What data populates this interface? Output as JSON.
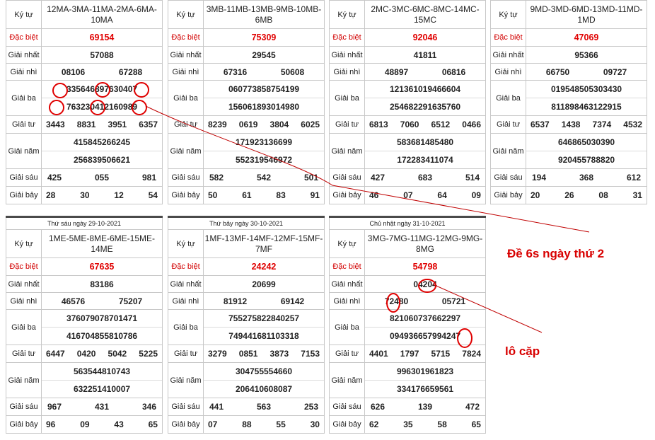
{
  "labels": {
    "ky_tu": "Ký tự",
    "dac_biet": "Đặc biệt",
    "nhat": "Giải nhất",
    "nhi": "Giải nhì",
    "ba": "Giải ba",
    "tu": "Giải tư",
    "nam": "Giải năm",
    "sau": "Giải sáu",
    "bay": "Giải bảy"
  },
  "tables": [
    {
      "header": "",
      "code": "12MA-3MA-11MA-2MA-6MA-10MA",
      "db": "69154",
      "g1": "57088",
      "g2": [
        "08106",
        "67288"
      ],
      "g3": [
        [
          "33564",
          "68976",
          "30407"
        ],
        [
          "76323",
          "04121",
          "60989"
        ]
      ],
      "g4": [
        "3443",
        "8831",
        "3951",
        "6357"
      ],
      "g5": [
        [
          "4158",
          "4526",
          "6245"
        ],
        [
          "2568",
          "3950",
          "6621"
        ]
      ],
      "g6": [
        "425",
        "055",
        "981"
      ],
      "g7": [
        "28",
        "30",
        "12",
        "54"
      ]
    },
    {
      "header": "",
      "code": "3MB-11MB-13MB-9MB-10MB-6MB",
      "db": "75309",
      "g1": "29545",
      "g2": [
        "67316",
        "50608"
      ],
      "g3": [
        [
          "06077",
          "38587",
          "54199"
        ],
        [
          "15606",
          "18930",
          "14980"
        ]
      ],
      "g4": [
        "8239",
        "0619",
        "3804",
        "6025"
      ],
      "g5": [
        [
          "1719",
          "2313",
          "6699"
        ],
        [
          "5523",
          "1954",
          "6972"
        ]
      ],
      "g6": [
        "582",
        "542",
        "501"
      ],
      "g7": [
        "50",
        "61",
        "83",
        "91"
      ]
    },
    {
      "header": "",
      "code": "2MC-3MC-6MC-8MC-14MC-15MC",
      "db": "92046",
      "g1": "41811",
      "g2": [
        "48897",
        "06816"
      ],
      "g3": [
        [
          "12136",
          "10194",
          "66604"
        ],
        [
          "25468",
          "22916",
          "35760"
        ]
      ],
      "g4": [
        "6813",
        "7060",
        "6512",
        "0466"
      ],
      "g5": [
        [
          "5836",
          "8148",
          "5480"
        ],
        [
          "1722",
          "8341",
          "1074"
        ]
      ],
      "g6": [
        "427",
        "683",
        "514"
      ],
      "g7": [
        "46",
        "07",
        "64",
        "09"
      ]
    },
    {
      "header": "",
      "code": "9MD-3MD-6MD-13MD-11MD-1MD",
      "db": "47069",
      "g1": "95366",
      "g2": [
        "66750",
        "09727"
      ],
      "g3": [
        [
          "01954",
          "85053",
          "03430"
        ],
        [
          "81189",
          "84631",
          "22915"
        ]
      ],
      "g4": [
        "6537",
        "1438",
        "7374",
        "4532"
      ],
      "g5": [
        [
          "6468",
          "6503",
          "0390"
        ],
        [
          "9204",
          "5578",
          "8820"
        ]
      ],
      "g6": [
        "194",
        "368",
        "612"
      ],
      "g7": [
        "20",
        "26",
        "08",
        "31"
      ]
    },
    {
      "header": "Thứ sáu ngày 29-10-2021",
      "code": "1ME-5ME-8ME-6ME-15ME-14ME",
      "db": "67635",
      "g1": "83186",
      "g2": [
        "46576",
        "75207"
      ],
      "g3": [
        [
          "37607",
          "90787",
          "01471"
        ],
        [
          "41670",
          "48558",
          "10786"
        ]
      ],
      "g4": [
        "6447",
        "0420",
        "5042",
        "5225"
      ],
      "g5": [
        [
          "5635",
          "4481",
          "0743"
        ],
        [
          "6322",
          "5141",
          "0007"
        ]
      ],
      "g6": [
        "967",
        "431",
        "346"
      ],
      "g7": [
        "96",
        "09",
        "43",
        "65"
      ]
    },
    {
      "header": "Thứ bảy ngày 30-10-2021",
      "code": "1MF-13MF-14MF-12MF-15MF-7MF",
      "db": "24242",
      "g1": "20699",
      "g2": [
        "81912",
        "69142"
      ],
      "g3": [
        [
          "75527",
          "58228",
          "40257"
        ],
        [
          "74944",
          "16811",
          "03318"
        ]
      ],
      "g4": [
        "3279",
        "0851",
        "3873",
        "7153"
      ],
      "g5": [
        [
          "3047",
          "5555",
          "4660"
        ],
        [
          "2064",
          "1060",
          "8087"
        ]
      ],
      "g6": [
        "441",
        "563",
        "253"
      ],
      "g7": [
        "07",
        "88",
        "55",
        "30"
      ]
    },
    {
      "header": "Chủ nhật ngày 31-10-2021",
      "code": "3MG-7MG-11MG-12MG-9MG-8MG",
      "db": "54798",
      "g1": "04204",
      "g2": [
        "72480",
        "05721"
      ],
      "g3": [
        [
          "82106",
          "07376",
          "62297"
        ],
        [
          "09493",
          "66579",
          "94247"
        ]
      ],
      "g4": [
        "4401",
        "1797",
        "5715",
        "7824"
      ],
      "g5": [
        [
          "9963",
          "0196",
          "1823"
        ],
        [
          "3341",
          "7665",
          "9561"
        ]
      ],
      "g6": [
        "626",
        "139",
        "472"
      ],
      "g7": [
        "62",
        "35",
        "58",
        "65"
      ]
    }
  ],
  "annotations": {
    "note1": "Đề 6s ngày thứ 2",
    "note2": "lô cặp",
    "color": "#d80000"
  }
}
